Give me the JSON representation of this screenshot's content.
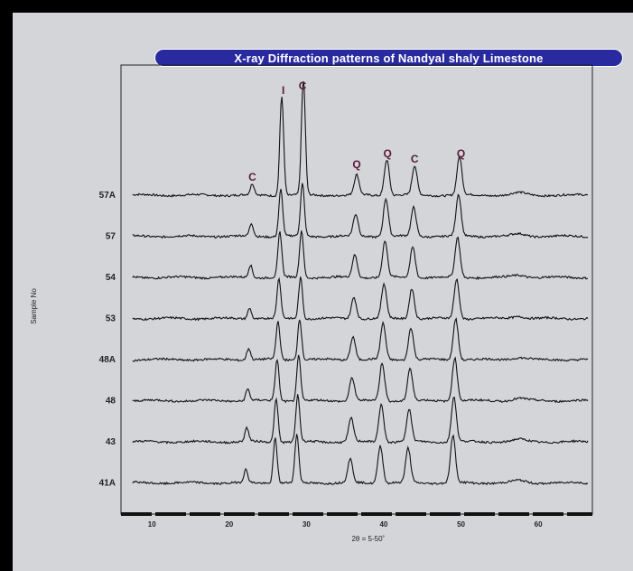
{
  "chart_data": {
    "type": "line",
    "title": "X-ray Diffraction patterns of Nandyal shaly Limestone",
    "xlabel": "2θ = 5-50˚",
    "ylabel": "Sample No",
    "xlim": [
      6,
      67
    ],
    "x_ticks": [
      10,
      20,
      30,
      40,
      50,
      60
    ],
    "grid": false,
    "samples": [
      "57A",
      "57",
      "54",
      "53",
      "48A",
      "48",
      "43",
      "41A"
    ],
    "peak_labels": [
      {
        "label": "C",
        "x": 23
      },
      {
        "label": "I",
        "x": 27
      },
      {
        "label": "C",
        "x": 29.5
      },
      {
        "label": "Q",
        "x": 36.5
      },
      {
        "label": "Q",
        "x": 40.5
      },
      {
        "label": "C",
        "x": 44
      },
      {
        "label": "Q",
        "x": 50
      }
    ],
    "peaks": [
      {
        "x": 23,
        "heights": [
          12,
          14,
          14,
          12,
          13,
          13,
          15,
          14
        ]
      },
      {
        "x": 26.8,
        "heights": [
          110,
          52,
          50,
          44,
          42,
          46,
          48,
          50
        ]
      },
      {
        "x": 29.6,
        "heights": [
          130,
          58,
          52,
          46,
          46,
          50,
          52,
          54
        ]
      },
      {
        "x": 36.5,
        "heights": [
          22,
          24,
          25,
          24,
          26,
          26,
          26,
          26
        ]
      },
      {
        "x": 40.4,
        "heights": [
          40,
          42,
          40,
          38,
          40,
          42,
          42,
          42
        ]
      },
      {
        "x": 44.0,
        "heights": [
          32,
          32,
          34,
          34,
          36,
          36,
          36,
          38
        ]
      },
      {
        "x": 49.8,
        "heights": [
          42,
          46,
          44,
          44,
          46,
          48,
          50,
          52
        ]
      }
    ],
    "colors": {
      "banner": "#2a2aa0",
      "trace": "#111111",
      "peak_label": "#5a1a3a"
    }
  }
}
